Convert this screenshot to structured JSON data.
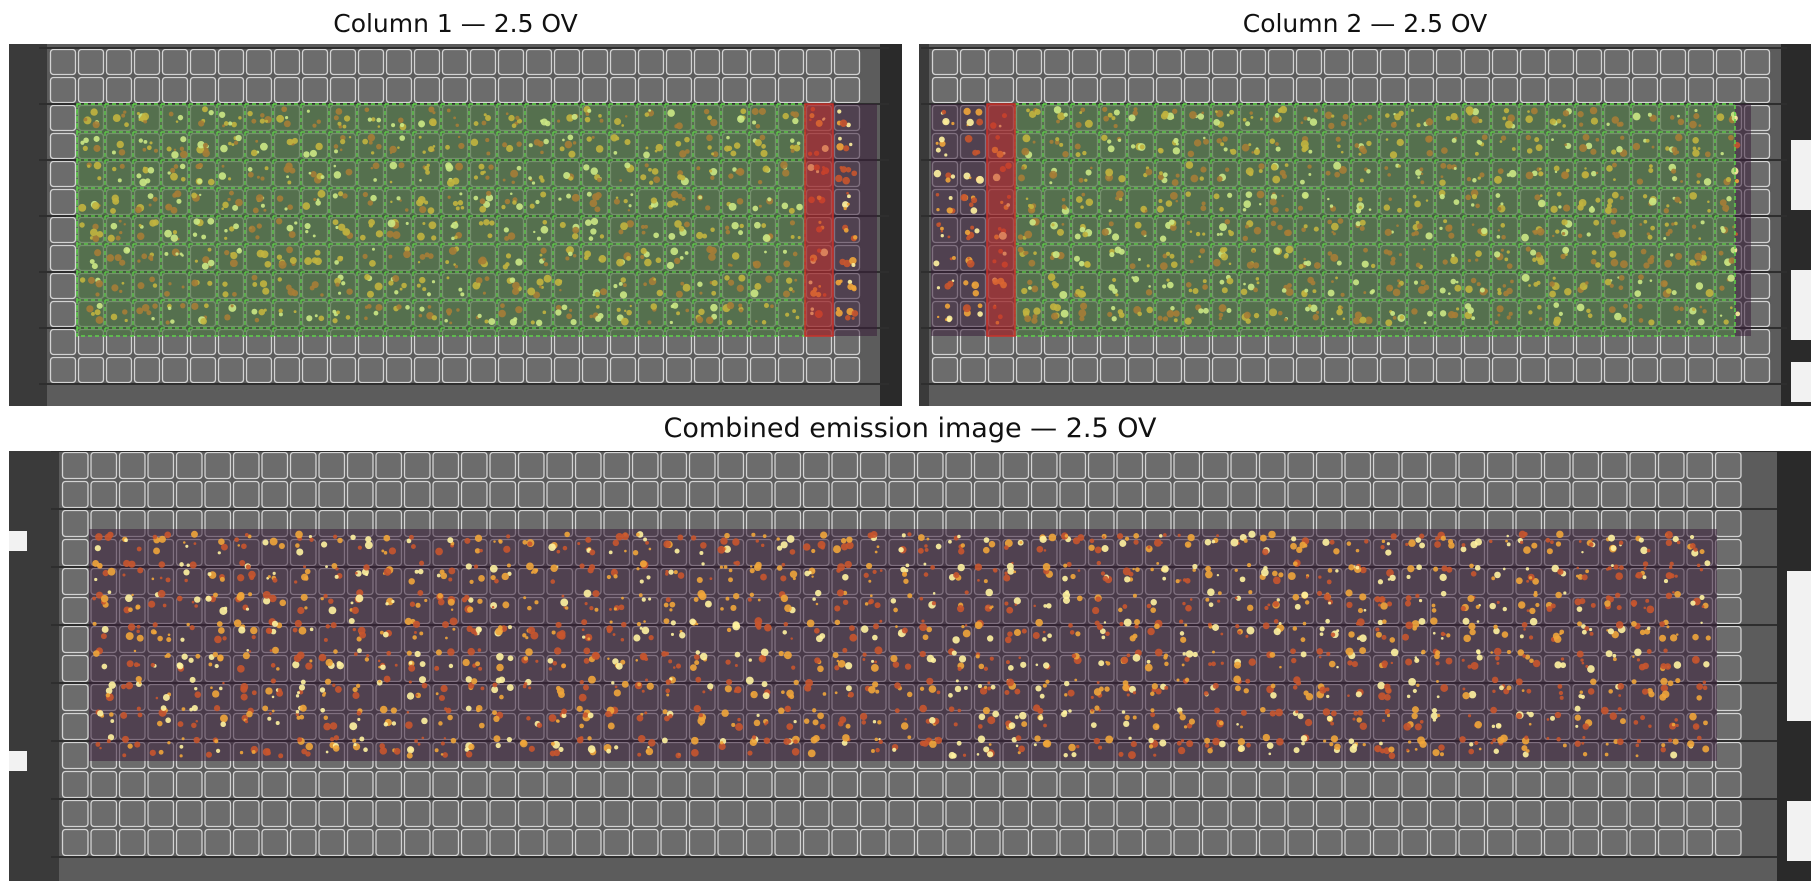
{
  "panels": [
    {
      "id": "column-1",
      "title": "Column 1 — 2.5 OV"
    },
    {
      "id": "column-2",
      "title": "Column 2 — 2.5 OV"
    },
    {
      "id": "combined",
      "title": "Combined emission image — 2.5 OV"
    }
  ],
  "colors": {
    "sensor_gray": "#6a6a6a",
    "grid_line": "#e6e6e6",
    "accepted_overlay": "#5fd24a",
    "rejected_overlay": "#c8322a",
    "hotspot_low": "#7a2a6a",
    "hotspot_high": "#fff3a0"
  }
}
